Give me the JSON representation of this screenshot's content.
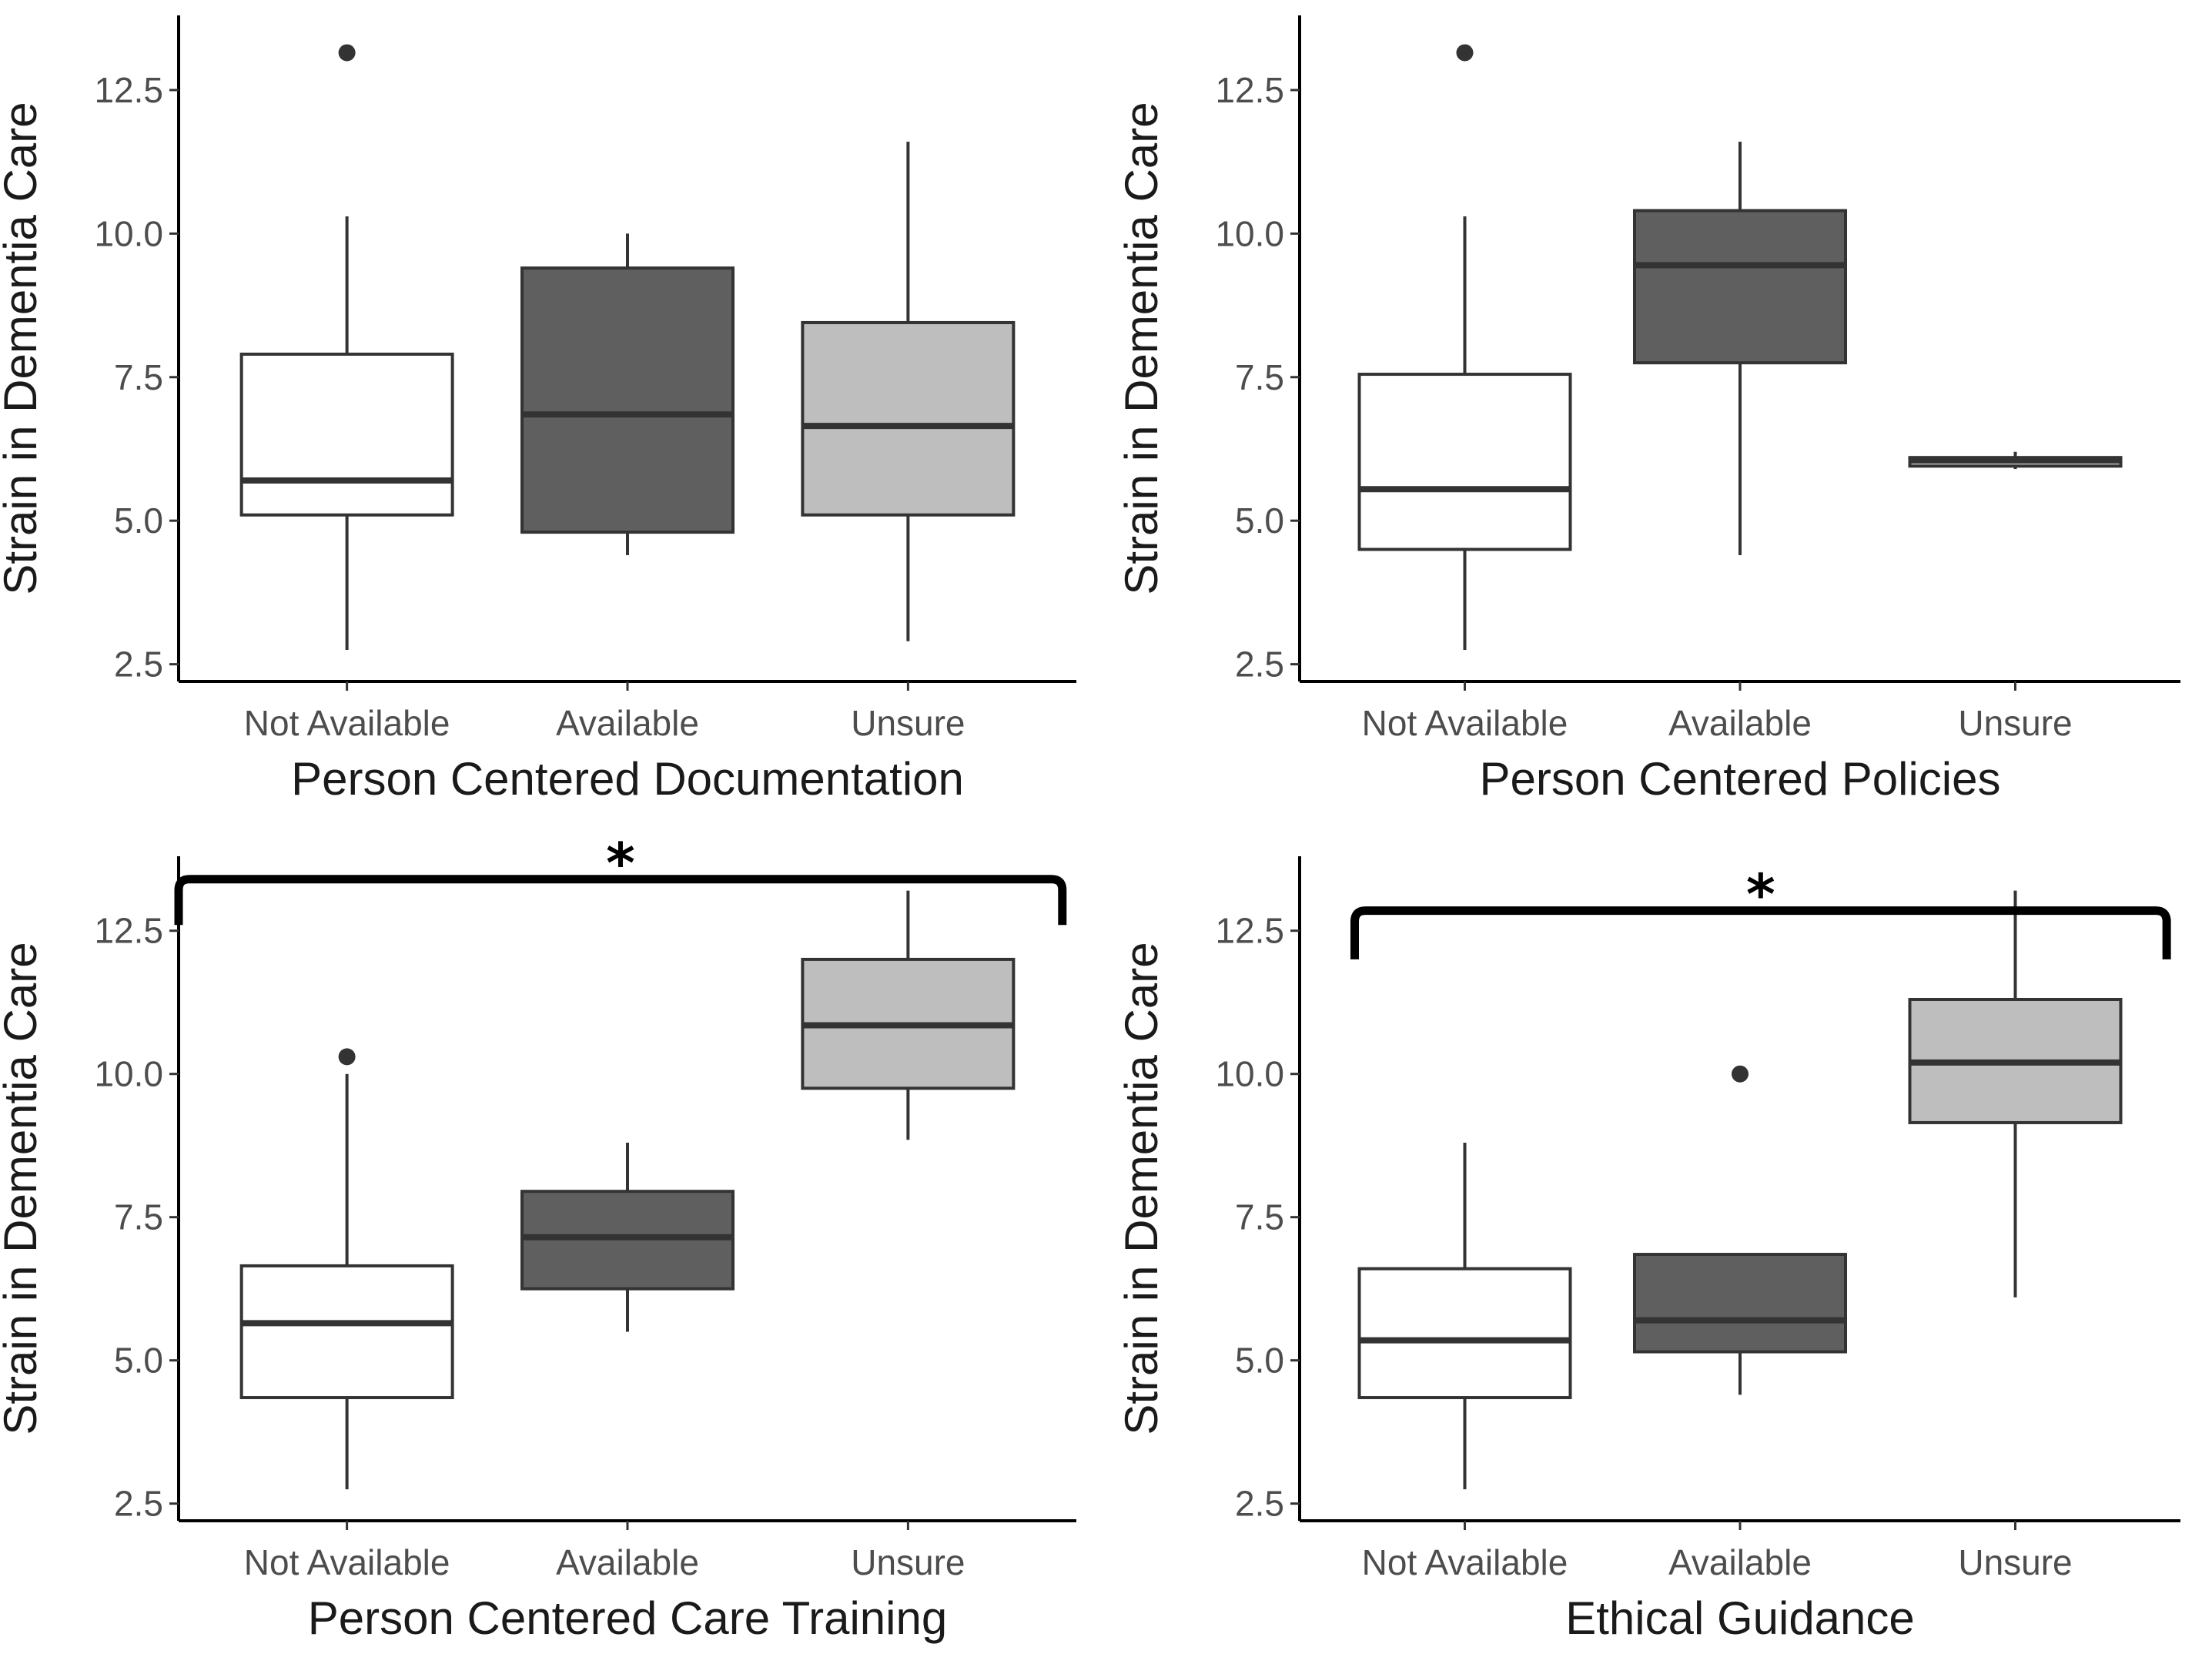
{
  "colors": {
    "Not Available": "#ffffff",
    "Available": "#5f5f5f",
    "Unsure": "#bebebe",
    "stroke": "#333333",
    "axis": "#000000"
  },
  "chart_data": [
    {
      "type": "box",
      "title": "",
      "xlabel": "Person Centered Documentation",
      "ylabel": "Strain in Dementia Care",
      "categories": [
        "Not Available",
        "Available",
        "Unsure"
      ],
      "ylim": [
        2.2,
        13.8
      ],
      "yticks": [
        2.5,
        5.0,
        7.5,
        10.0,
        12.5
      ],
      "ytick_labels": [
        "2.5",
        "5.0",
        "7.5",
        "10.0",
        "12.5"
      ],
      "boxes": [
        {
          "category": "Not Available",
          "min": 2.75,
          "q1": 5.1,
          "median": 5.7,
          "q3": 7.9,
          "max": 10.3,
          "outliers": [
            13.15
          ]
        },
        {
          "category": "Available",
          "min": 4.4,
          "q1": 4.8,
          "median": 6.85,
          "q3": 9.4,
          "max": 10.0,
          "outliers": []
        },
        {
          "category": "Unsure",
          "min": 2.9,
          "q1": 5.1,
          "median": 6.65,
          "q3": 8.45,
          "max": 11.6,
          "outliers": []
        }
      ],
      "significance": null
    },
    {
      "type": "box",
      "title": "",
      "xlabel": "Person Centered Policies",
      "ylabel": "Strain in Dementia Care",
      "categories": [
        "Not Available",
        "Available",
        "Unsure"
      ],
      "ylim": [
        2.2,
        13.8
      ],
      "yticks": [
        2.5,
        5.0,
        7.5,
        10.0,
        12.5
      ],
      "ytick_labels": [
        "2.5",
        "5.0",
        "7.5",
        "10.0",
        "12.5"
      ],
      "boxes": [
        {
          "category": "Not Available",
          "min": 2.75,
          "q1": 4.5,
          "median": 5.55,
          "q3": 7.55,
          "max": 10.3,
          "outliers": [
            13.15
          ]
        },
        {
          "category": "Available",
          "min": 4.4,
          "q1": 7.75,
          "median": 9.45,
          "q3": 10.4,
          "max": 11.6,
          "outliers": []
        },
        {
          "category": "Unsure",
          "min": 5.9,
          "q1": 5.95,
          "median": 6.05,
          "q3": 6.1,
          "max": 6.2,
          "outliers": []
        }
      ],
      "significance": null
    },
    {
      "type": "box",
      "title": "",
      "xlabel": "Person Centered Care Training",
      "ylabel": "Strain in Dementia Care",
      "categories": [
        "Not Available",
        "Available",
        "Unsure"
      ],
      "ylim": [
        2.2,
        13.8
      ],
      "yticks": [
        2.5,
        5.0,
        7.5,
        10.0,
        12.5
      ],
      "ytick_labels": [
        "2.5",
        "5.0",
        "7.5",
        "10.0",
        "12.5"
      ],
      "boxes": [
        {
          "category": "Not Available",
          "min": 2.75,
          "q1": 4.35,
          "median": 5.65,
          "q3": 6.65,
          "max": 10.0,
          "outliers": [
            10.3
          ]
        },
        {
          "category": "Available",
          "min": 5.5,
          "q1": 6.25,
          "median": 7.15,
          "q3": 7.95,
          "max": 8.8,
          "outliers": []
        },
        {
          "category": "Unsure",
          "min": 8.85,
          "q1": 9.75,
          "median": 10.85,
          "q3": 12.0,
          "max": 13.2,
          "outliers": []
        }
      ],
      "significance": {
        "label": "*",
        "bracket_value": 13.4,
        "leg_value": 12.6,
        "from": 0.4,
        "to": 3.55
      }
    },
    {
      "type": "box",
      "title": "",
      "xlabel": "Ethical Guidance",
      "ylabel": "Strain in Dementia Care",
      "categories": [
        "Not Available",
        "Available",
        "Unsure"
      ],
      "ylim": [
        2.2,
        13.8
      ],
      "yticks": [
        2.5,
        5.0,
        7.5,
        10.0,
        12.5
      ],
      "ytick_labels": [
        "2.5",
        "5.0",
        "7.5",
        "10.0",
        "12.5"
      ],
      "boxes": [
        {
          "category": "Not Available",
          "min": 2.75,
          "q1": 4.35,
          "median": 5.35,
          "q3": 6.6,
          "max": 8.8,
          "outliers": []
        },
        {
          "category": "Available",
          "min": 4.4,
          "q1": 5.15,
          "median": 5.7,
          "q3": 6.85,
          "max": 6.85,
          "outliers": [
            10.0
          ]
        },
        {
          "category": "Unsure",
          "min": 6.1,
          "q1": 9.15,
          "median": 10.2,
          "q3": 11.3,
          "max": 13.2,
          "outliers": []
        }
      ],
      "significance": {
        "label": "*",
        "bracket_value": 12.85,
        "leg_value": 12.0,
        "from": 0.6,
        "to": 3.55
      }
    }
  ]
}
